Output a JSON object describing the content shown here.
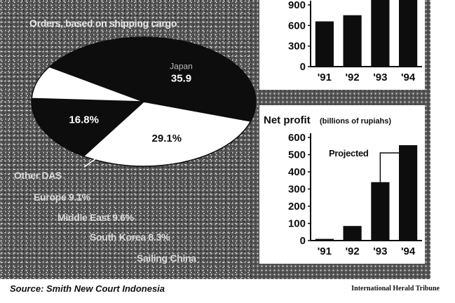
{
  "colors": {
    "ink": "#0d0d0d",
    "paper": "#ffffff",
    "halftone": "#5a5a5a",
    "speckle": "#cfcfcf"
  },
  "footer": {
    "source": "Source: Smith New Court Indonesia",
    "credit": "International Herald Tribune"
  },
  "chart_data": [
    {
      "type": "pie",
      "title": "Orders, based on shipping cargo",
      "slices": [
        {
          "label": "Japan",
          "value": 35.9,
          "value_label": "35.9",
          "fill": "#0d0d0d"
        },
        {
          "label": "",
          "value": 29.1,
          "value_label": "29.1%",
          "fill": "#ffffff"
        },
        {
          "label": "",
          "value": 16.8,
          "value_label": "16.8%",
          "fill": "#0d0d0d"
        },
        {
          "label": "",
          "value": 8.3,
          "value_label": "",
          "fill": "#ffffff"
        },
        {
          "label": "",
          "value": 9.9,
          "value_label": "",
          "fill": "#0d0d0d"
        }
      ],
      "legend": [
        "Other DAS",
        "Europe 9.1%",
        "Middle East 9.6%",
        "South Korea 8.3%",
        "Sailing China"
      ]
    },
    {
      "type": "bar",
      "title": "",
      "categories": [
        "'91",
        "'92",
        "'93",
        "'94"
      ],
      "values": [
        660,
        750,
        1000,
        1000
      ],
      "ylim": [
        0,
        900
      ],
      "yticks": [
        0,
        300,
        600,
        900
      ]
    },
    {
      "type": "bar",
      "title": "Net profit",
      "subtitle": "(billions of rupiahs)",
      "categories": [
        "'91",
        "'92",
        "'93",
        "'94"
      ],
      "values": [
        10,
        85,
        340,
        555
      ],
      "ylim": [
        0,
        600
      ],
      "yticks": [
        0,
        100,
        200,
        300,
        400,
        500,
        600
      ],
      "annotation": "Projected"
    }
  ]
}
